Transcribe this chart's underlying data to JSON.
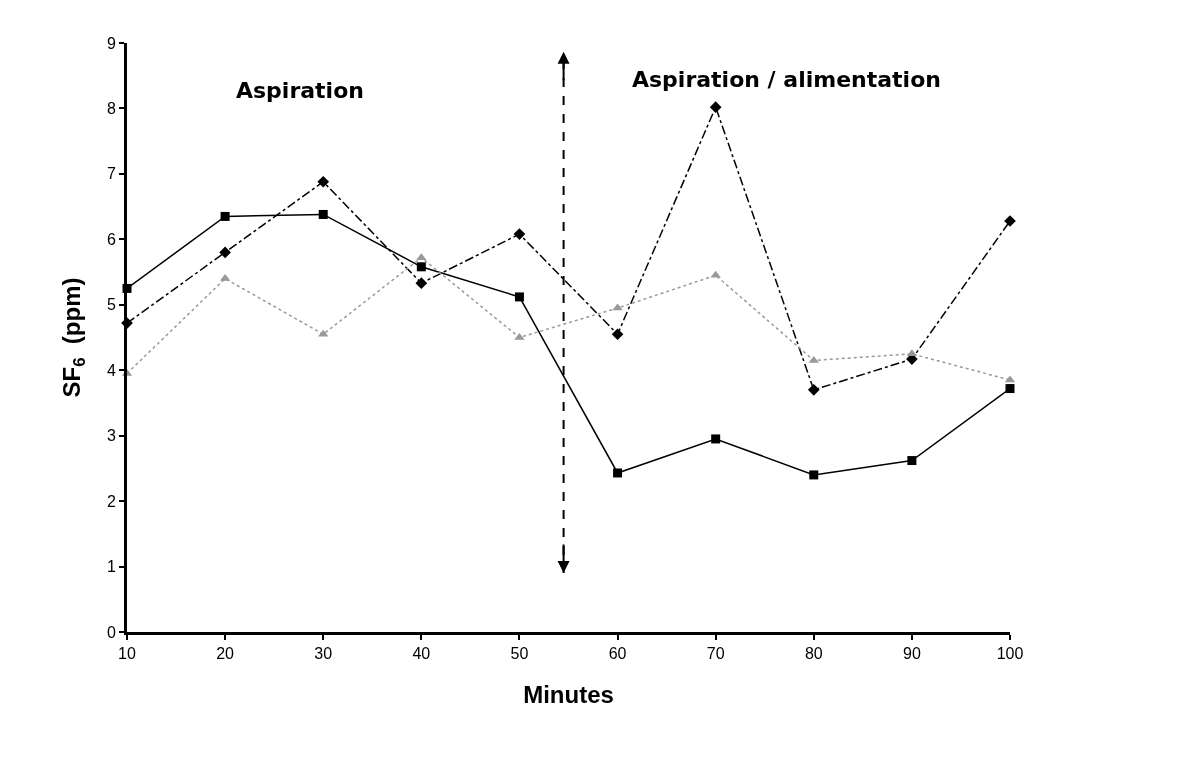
{
  "chart_data": {
    "type": "line",
    "xlabel": "Minutes",
    "ylabel": "SF$_{6}$  (ppm)",
    "x": [
      10,
      20,
      30,
      40,
      50,
      60,
      70,
      80,
      90,
      100
    ],
    "series": [
      {
        "color": "#000000",
        "marker": "square",
        "line_style": "solid",
        "values": [
          5.25,
          6.35,
          6.38,
          5.58,
          5.12,
          2.43,
          2.95,
          2.4,
          2.62,
          3.72
        ]
      },
      {
        "color": "#000000",
        "marker": "diamond",
        "line_style": "dashed",
        "values": [
          4.72,
          5.8,
          6.88,
          5.33,
          6.08,
          4.55,
          8.02,
          3.7,
          4.17,
          6.28
        ]
      },
      {
        "color": "#999999",
        "marker": "triangle",
        "line_style": "dotted",
        "values": [
          3.95,
          5.4,
          4.55,
          5.72,
          4.5,
          4.95,
          5.45,
          4.15,
          4.25,
          3.85
        ]
      }
    ],
    "xlim": [
      10,
      100
    ],
    "xticks": [
      10,
      20,
      30,
      40,
      50,
      60,
      70,
      80,
      90,
      100
    ],
    "ylim": [
      0,
      9
    ],
    "yticks": [
      0,
      1,
      2,
      3,
      4,
      5,
      6,
      7,
      8,
      9
    ],
    "ref_lines": [
      {
        "axis": "x",
        "value": 54.5,
        "line_style": "dashed",
        "color": "#000000"
      }
    ],
    "annotations": [
      "Aspiration",
      "Aspiration / alimentation"
    ]
  }
}
